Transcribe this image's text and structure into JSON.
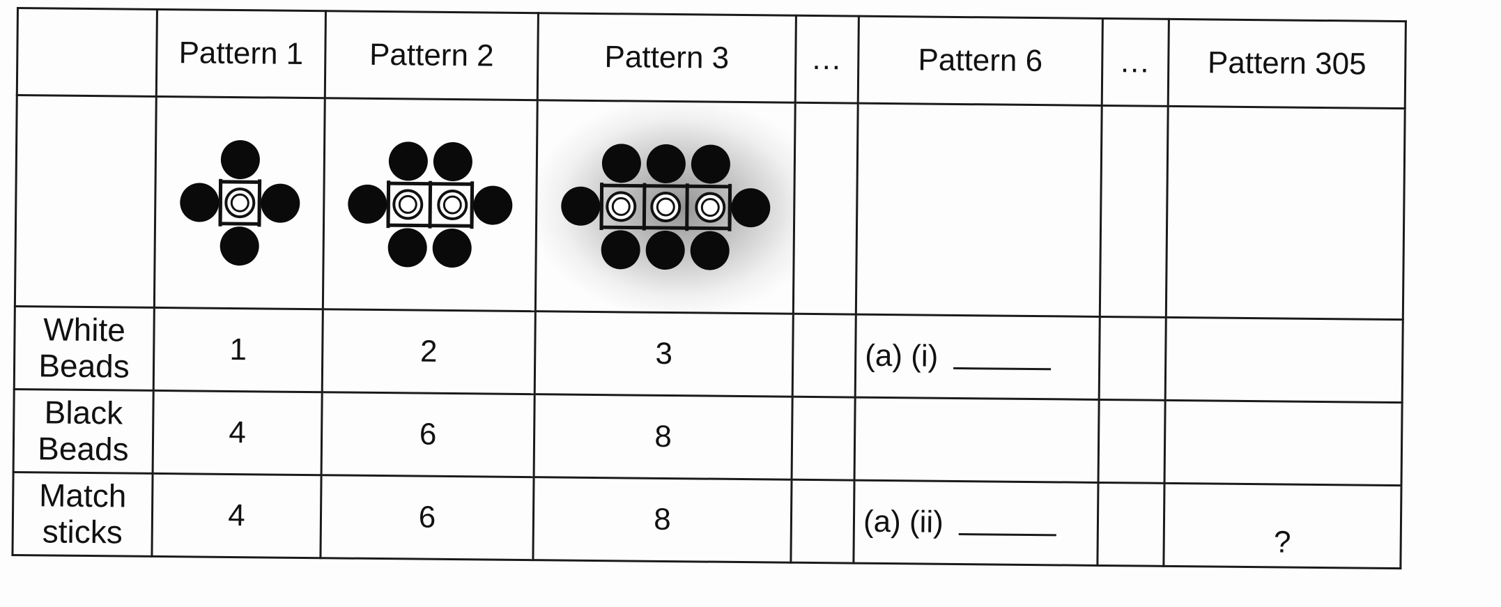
{
  "table": {
    "headers": {
      "p1": "Pattern 1",
      "p2": "Pattern 2",
      "p3": "Pattern 3",
      "ellipsis1": "...",
      "p6": "Pattern 6",
      "ellipsis2": "...",
      "p305": "Pattern 305"
    },
    "figures": [
      {
        "white_beads": 1,
        "black_beads": 4
      },
      {
        "white_beads": 2,
        "black_beads": 6
      },
      {
        "white_beads": 3,
        "black_beads": 8
      }
    ],
    "rows": {
      "white": {
        "label_line1": "White",
        "label_line2": "Beads",
        "p1": "1",
        "p2": "2",
        "p3": "3",
        "p6": "(a) (i)"
      },
      "black": {
        "label_line1": "Black",
        "label_line2": "Beads",
        "p1": "4",
        "p2": "6",
        "p3": "8"
      },
      "match": {
        "label_line1": "Match",
        "label_line2": "sticks",
        "p1": "4",
        "p2": "6",
        "p3": "8",
        "p6": "(a) (ii)",
        "p305": "?"
      }
    }
  }
}
